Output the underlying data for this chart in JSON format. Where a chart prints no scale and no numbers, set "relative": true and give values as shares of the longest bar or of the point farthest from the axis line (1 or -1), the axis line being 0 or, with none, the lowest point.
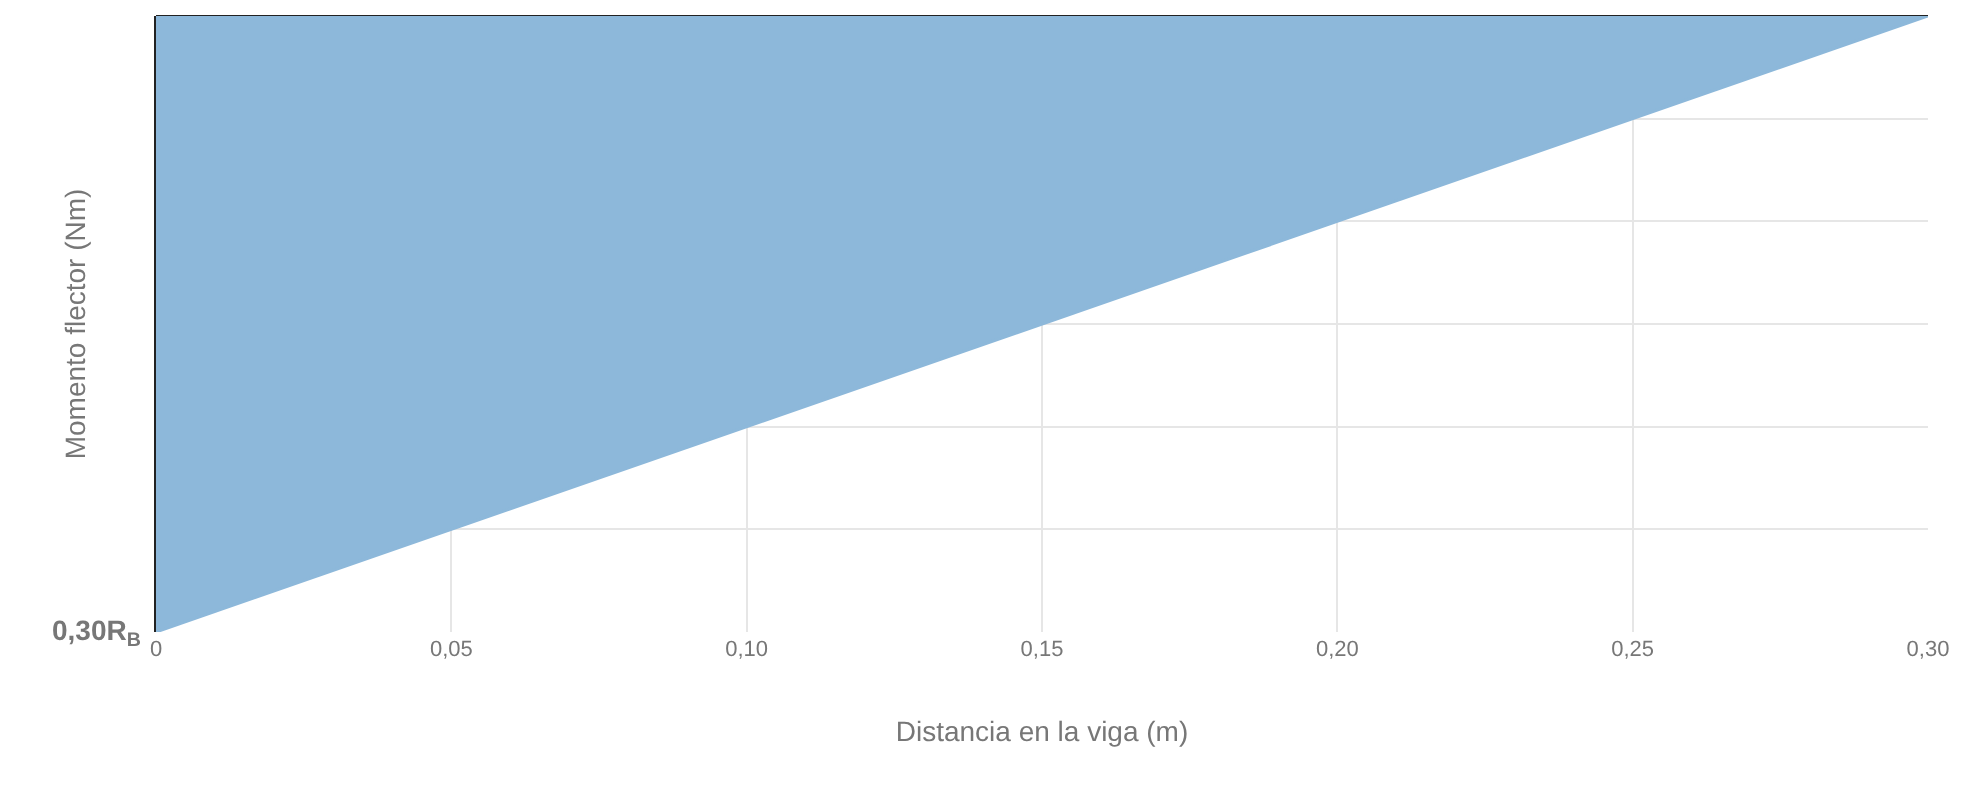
{
  "chart_data": {
    "type": "area",
    "relative": true,
    "xlabel": "Distancia en la viga (m)",
    "ylabel": "Momento flector (Nm)",
    "x": [
      0,
      0.3
    ],
    "series": [
      {
        "color": "#8db8da",
        "values": [
          -1,
          0
        ]
      }
    ],
    "xlim": [
      0,
      0.3
    ],
    "xticks": [
      0,
      {
        "value": 0.05,
        "label": "0,05"
      },
      {
        "value": 0.1,
        "label": "0,10"
      },
      {
        "value": 0.15,
        "label": "0,15"
      },
      {
        "value": 0.2,
        "label": "0,20"
      },
      {
        "value": 0.25,
        "label": "0,25"
      },
      {
        "value": 0.3,
        "label": "0,30"
      }
    ],
    "annotations": [
      {
        "text": "0,30R$_{B}$",
        "x": 0,
        "y": -1
      }
    ],
    "grid": true,
    "tick_labels": "x"
  }
}
